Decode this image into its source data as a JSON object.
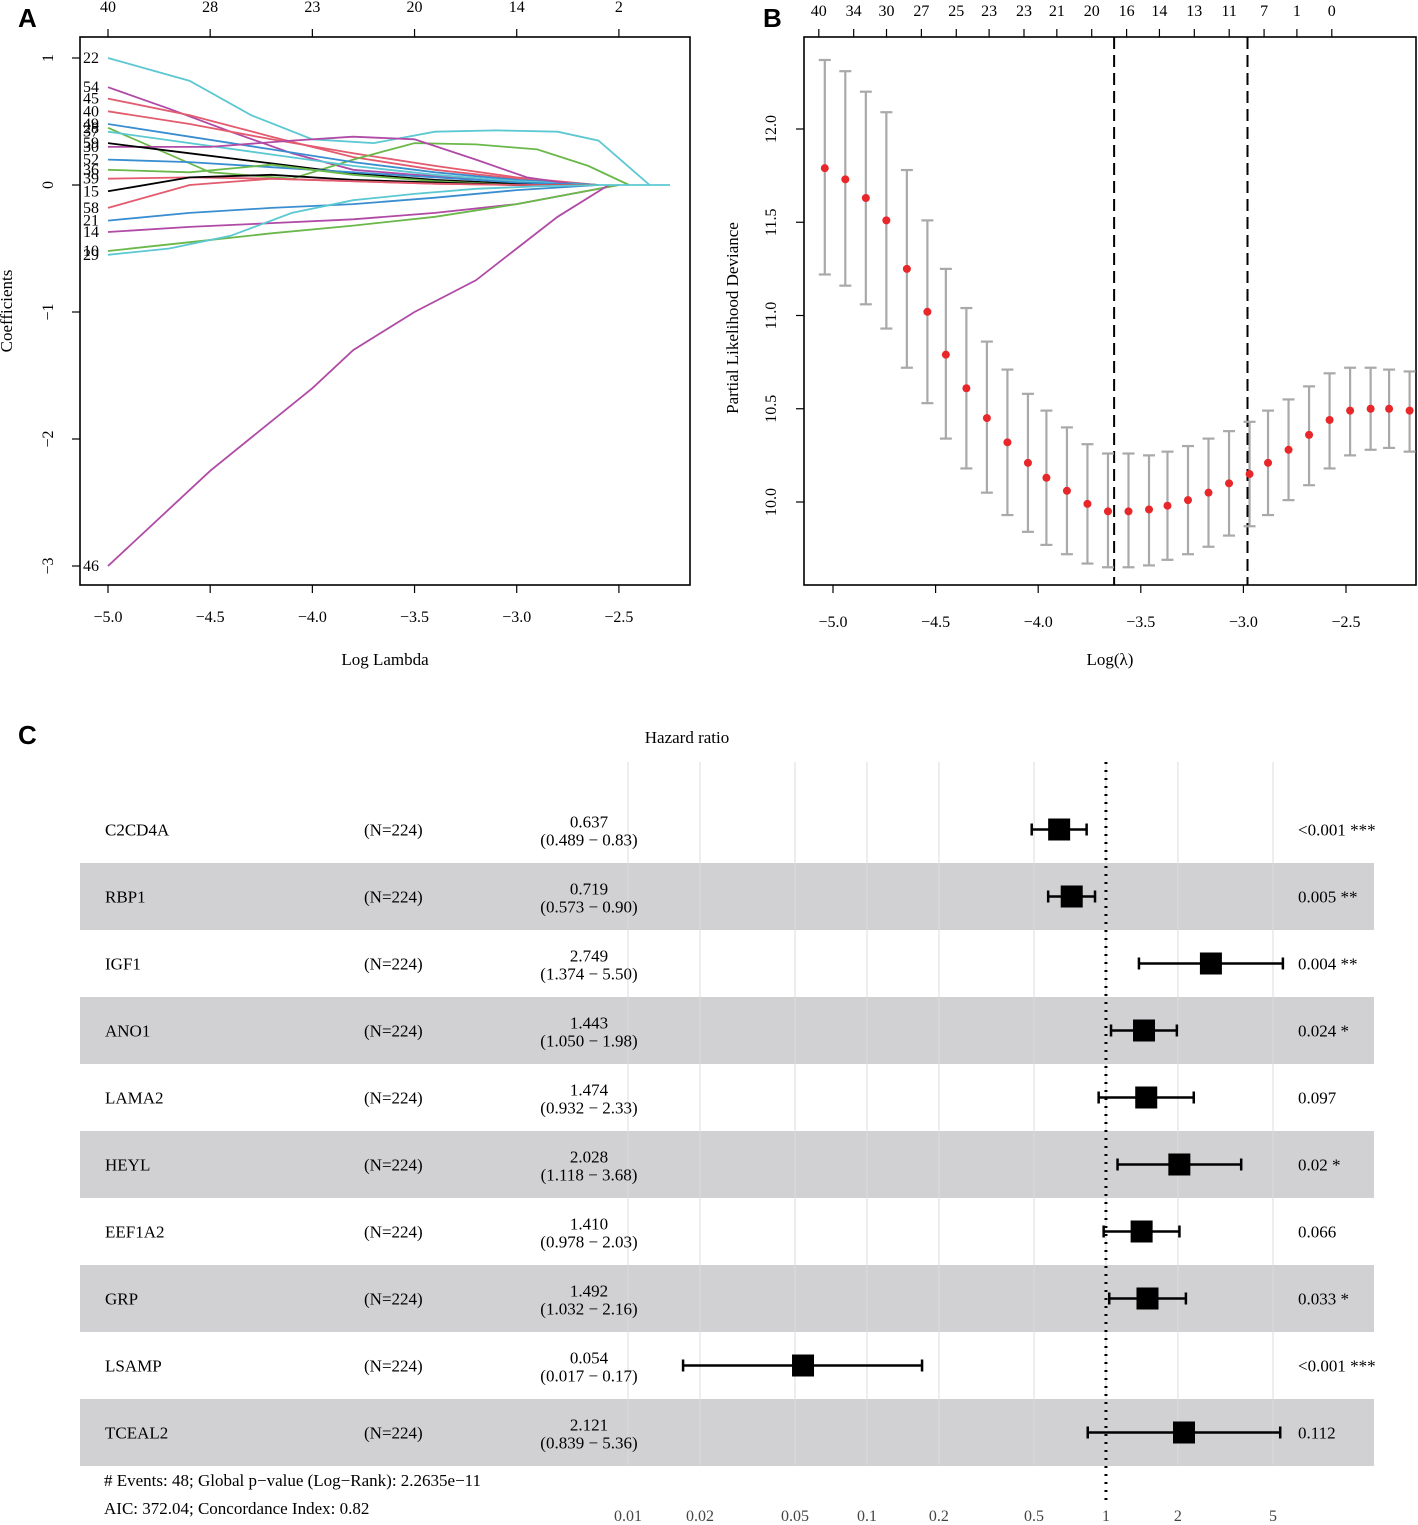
{
  "chart_data": [
    {
      "panel": "A",
      "type": "line",
      "title": "",
      "xlabel": "Log Lambda",
      "ylabel": "Coefficients",
      "xlim": [
        -5.0,
        -2.25
      ],
      "ylim": [
        -3.0,
        1.0
      ],
      "x_ticks": [
        "−5.0",
        "−4.5",
        "−4.0",
        "−3.5",
        "−3.0",
        "−2.5"
      ],
      "y_ticks": [
        "1",
        "0",
        "−1",
        "−2",
        "−3"
      ],
      "top_ticks": [
        "40",
        "28",
        "23",
        "20",
        "14",
        "2"
      ],
      "top_tick_x": [
        -5.0,
        -4.5,
        -4.0,
        -3.5,
        -3.0,
        -2.5
      ],
      "left_labels": [
        "22",
        "54",
        "45",
        "40",
        "28",
        "49",
        "37",
        "30",
        "59",
        "52",
        "36",
        "39",
        "15",
        "58",
        "21",
        "14",
        "10",
        "29",
        "46"
      ],
      "series": [
        {
          "name": "22",
          "color": "#5bc8d2",
          "x": [
            -5.0,
            -4.6,
            -4.3,
            -4.0,
            -3.7,
            -3.4,
            -3.1,
            -2.8,
            -2.6,
            -2.35
          ],
          "values": [
            1.0,
            0.82,
            0.55,
            0.36,
            0.33,
            0.42,
            0.43,
            0.42,
            0.35,
            0.0
          ]
        },
        {
          "name": "54",
          "color": "#b04aa6",
          "x": [
            -5.0,
            -4.7,
            -4.4,
            -4.1,
            -3.8,
            -3.5,
            -3.2,
            -2.9,
            -2.6
          ],
          "values": [
            0.77,
            0.6,
            0.42,
            0.25,
            0.12,
            0.08,
            0.05,
            0.02,
            0.0
          ]
        },
        {
          "name": "45",
          "color": "#e35b6e",
          "x": [
            -5.0,
            -4.6,
            -4.2,
            -3.8,
            -3.4,
            -3.0,
            -2.6
          ],
          "values": [
            0.68,
            0.55,
            0.38,
            0.22,
            0.12,
            0.05,
            0.0
          ]
        },
        {
          "name": "40",
          "color": "#e35b6e",
          "x": [
            -5.0,
            -4.6,
            -4.2,
            -3.8,
            -3.4,
            -3.0,
            -2.6
          ],
          "values": [
            0.58,
            0.48,
            0.36,
            0.25,
            0.15,
            0.06,
            0.0
          ]
        },
        {
          "name": "28",
          "color": "#6ab84a",
          "x": [
            -5.0,
            -4.5,
            -4.1,
            -3.8,
            -3.5,
            -3.2,
            -2.9,
            -2.65,
            -2.45
          ],
          "values": [
            0.45,
            0.1,
            0.05,
            0.2,
            0.33,
            0.32,
            0.28,
            0.15,
            0.0
          ]
        },
        {
          "name": "49",
          "color": "#3a8ed0",
          "x": [
            -5.0,
            -4.6,
            -4.2,
            -3.8,
            -3.4,
            -3.0,
            -2.6
          ],
          "values": [
            0.48,
            0.38,
            0.28,
            0.18,
            0.1,
            0.04,
            0.0
          ]
        },
        {
          "name": "37",
          "color": "#5bc8d2",
          "x": [
            -5.0,
            -4.6,
            -4.2,
            -3.8,
            -3.4,
            -3.0,
            -2.6
          ],
          "values": [
            0.42,
            0.33,
            0.24,
            0.15,
            0.08,
            0.03,
            0.0
          ]
        },
        {
          "name": "30",
          "color": "#b04aa6",
          "x": [
            -5.0,
            -4.5,
            -4.1,
            -3.8,
            -3.5,
            -3.2,
            -2.95,
            -2.7
          ],
          "values": [
            0.3,
            0.3,
            0.35,
            0.38,
            0.36,
            0.2,
            0.06,
            0.0
          ]
        },
        {
          "name": "59",
          "color": "#000000",
          "x": [
            -5.0,
            -4.6,
            -4.2,
            -3.8,
            -3.4,
            -3.0,
            -2.6
          ],
          "values": [
            0.33,
            0.25,
            0.17,
            0.09,
            0.04,
            0.01,
            0.0
          ]
        },
        {
          "name": "52",
          "color": "#3a8ed0",
          "x": [
            -5.0,
            -4.6,
            -4.2,
            -3.8,
            -3.4,
            -3.0,
            -2.6
          ],
          "values": [
            0.2,
            0.18,
            0.14,
            0.1,
            0.06,
            0.02,
            0.0
          ]
        },
        {
          "name": "36",
          "color": "#6ab84a",
          "x": [
            -5.0,
            -4.6,
            -4.2,
            -3.8,
            -3.4,
            -3.0,
            -2.6
          ],
          "values": [
            0.12,
            0.1,
            0.16,
            0.08,
            0.03,
            0.0,
            0.0
          ]
        },
        {
          "name": "39",
          "color": "#e35b6e",
          "x": [
            -5.0,
            -4.6,
            -4.2,
            -3.8,
            -3.4,
            -3.0,
            -2.6
          ],
          "values": [
            0.05,
            0.06,
            0.05,
            0.03,
            0.01,
            0.0,
            0.0
          ]
        },
        {
          "name": "15",
          "color": "#000000",
          "x": [
            -5.0,
            -4.6,
            -4.2,
            -3.8,
            -3.4,
            -3.0,
            -2.6
          ],
          "values": [
            -0.05,
            0.06,
            0.08,
            0.04,
            0.02,
            0.0,
            0.0
          ]
        },
        {
          "name": "58",
          "color": "#e35b6e",
          "x": [
            -5.0,
            -4.6,
            -4.2,
            -3.8,
            -3.4,
            -3.0,
            -2.6
          ],
          "values": [
            -0.18,
            0.0,
            0.05,
            0.03,
            0.01,
            0.0,
            0.0
          ]
        },
        {
          "name": "21",
          "color": "#3a8ed0",
          "x": [
            -5.0,
            -4.6,
            -4.2,
            -3.8,
            -3.4,
            -3.0,
            -2.6
          ],
          "values": [
            -0.28,
            -0.22,
            -0.18,
            -0.15,
            -0.1,
            -0.04,
            0.0
          ]
        },
        {
          "name": "14",
          "color": "#b04aa6",
          "x": [
            -5.0,
            -4.6,
            -4.2,
            -3.8,
            -3.4,
            -3.0,
            -2.7,
            -2.5
          ],
          "values": [
            -0.37,
            -0.33,
            -0.3,
            -0.27,
            -0.22,
            -0.15,
            -0.06,
            0.0
          ]
        },
        {
          "name": "10",
          "color": "#6ab84a",
          "x": [
            -5.0,
            -4.6,
            -4.2,
            -3.8,
            -3.4,
            -3.0,
            -2.7,
            -2.5
          ],
          "values": [
            -0.52,
            -0.45,
            -0.38,
            -0.32,
            -0.25,
            -0.15,
            -0.06,
            0.0
          ]
        },
        {
          "name": "29",
          "color": "#5bc8d2",
          "x": [
            -5.0,
            -4.7,
            -4.4,
            -4.1,
            -3.8,
            -3.5,
            -3.2,
            -2.9,
            -2.6
          ],
          "values": [
            -0.55,
            -0.5,
            -0.4,
            -0.22,
            -0.12,
            -0.07,
            -0.03,
            -0.01,
            0.0
          ]
        },
        {
          "name": "46",
          "color": "#b04aa6",
          "x": [
            -5.0,
            -4.5,
            -4.0,
            -3.8,
            -3.5,
            -3.2,
            -3.0,
            -2.8,
            -2.55
          ],
          "values": [
            -3.0,
            -2.25,
            -1.6,
            -1.3,
            -1.0,
            -0.75,
            -0.5,
            -0.25,
            0.0
          ]
        }
      ]
    },
    {
      "panel": "B",
      "type": "scatter",
      "title": "",
      "xlabel": "Log(λ)",
      "ylabel": "Partial Likelihood Deviance",
      "xlim": [
        -5.1,
        -2.25
      ],
      "ylim": [
        9.65,
        12.4
      ],
      "x_ticks": [
        "−5.0",
        "−4.5",
        "−4.0",
        "−3.5",
        "−3.0",
        "−2.5"
      ],
      "y_ticks": [
        "10.0",
        "10.5",
        "11.0",
        "11.5",
        "12.0"
      ],
      "top_ticks": [
        "40",
        "34",
        "30",
        "27",
        "25",
        "23",
        "23",
        "21",
        "20",
        "16",
        "14",
        "13",
        "11",
        "7",
        "1",
        "0"
      ],
      "top_tick_x": [
        -5.04,
        -4.87,
        -4.71,
        -4.54,
        -4.37,
        -4.21,
        -4.04,
        -3.88,
        -3.71,
        -3.54,
        -3.38,
        -3.21,
        -3.04,
        -2.87,
        -2.71,
        -2.54
      ],
      "x": [
        -5.04,
        -4.94,
        -4.84,
        -4.74,
        -4.64,
        -4.54,
        -4.45,
        -4.35,
        -4.25,
        -4.15,
        -4.05,
        -3.96,
        -3.86,
        -3.76,
        -3.66,
        -3.56,
        -3.46,
        -3.37,
        -3.27,
        -3.17,
        -3.07,
        -2.97,
        -2.88,
        -2.78,
        -2.68,
        -2.58,
        -2.48,
        -2.38,
        -2.29,
        -2.19
      ],
      "values": [
        11.79,
        11.73,
        11.63,
        11.51,
        11.25,
        11.02,
        10.79,
        10.61,
        10.45,
        10.32,
        10.21,
        10.13,
        10.06,
        9.99,
        9.95,
        9.95,
        9.96,
        9.98,
        10.01,
        10.05,
        10.1,
        10.15,
        10.21,
        10.28,
        10.36,
        10.44,
        10.49,
        10.5,
        10.5,
        10.49
      ],
      "upper": [
        12.37,
        12.31,
        12.2,
        12.09,
        11.78,
        11.51,
        11.25,
        11.04,
        10.86,
        10.71,
        10.58,
        10.49,
        10.4,
        10.31,
        10.26,
        10.26,
        10.25,
        10.27,
        10.3,
        10.34,
        10.38,
        10.43,
        10.49,
        10.55,
        10.62,
        10.69,
        10.72,
        10.72,
        10.71,
        10.7
      ],
      "lower": [
        11.22,
        11.16,
        11.06,
        10.93,
        10.72,
        10.53,
        10.34,
        10.18,
        10.05,
        9.93,
        9.84,
        9.77,
        9.72,
        9.67,
        9.65,
        9.65,
        9.66,
        9.69,
        9.72,
        9.76,
        9.82,
        9.87,
        9.93,
        10.01,
        10.09,
        10.18,
        10.25,
        10.28,
        10.29,
        10.27
      ],
      "vlines": [
        -3.63,
        -2.98
      ],
      "point_color": "#e8272a",
      "errorbar_color": "#a9a9a9"
    },
    {
      "panel": "C",
      "type": "forest",
      "title": "Hazard ratio",
      "x_scale": "log",
      "xlim": [
        0.01,
        10
      ],
      "x_ticks": [
        0.01,
        0.02,
        0.05,
        0.1,
        0.2,
        0.5,
        1,
        2,
        5
      ],
      "x_tick_labels": [
        "0.01",
        "0.02",
        "0.05",
        "0.1",
        "0.2",
        "0.5",
        "1",
        "2",
        "5"
      ],
      "reference": 1,
      "rows": [
        {
          "gene": "C2CD4A",
          "n": "(N=224)",
          "hr_text": "0.637",
          "ci_text": "(0.489 − 0.83)",
          "hr": 0.637,
          "lo": 0.489,
          "hi": 0.83,
          "p": "<0.001 ***"
        },
        {
          "gene": "RBP1",
          "n": "(N=224)",
          "hr_text": "0.719",
          "ci_text": "(0.573 − 0.90)",
          "hr": 0.719,
          "lo": 0.573,
          "hi": 0.9,
          "p": "0.005 **"
        },
        {
          "gene": "IGF1",
          "n": "(N=224)",
          "hr_text": "2.749",
          "ci_text": "(1.374 − 5.50)",
          "hr": 2.749,
          "lo": 1.374,
          "hi": 5.5,
          "p": "0.004 **"
        },
        {
          "gene": "ANO1",
          "n": "(N=224)",
          "hr_text": "1.443",
          "ci_text": "(1.050 − 1.98)",
          "hr": 1.443,
          "lo": 1.05,
          "hi": 1.98,
          "p": "0.024 *"
        },
        {
          "gene": "LAMA2",
          "n": "(N=224)",
          "hr_text": "1.474",
          "ci_text": "(0.932 − 2.33)",
          "hr": 1.474,
          "lo": 0.932,
          "hi": 2.33,
          "p": "0.097"
        },
        {
          "gene": "HEYL",
          "n": "(N=224)",
          "hr_text": "2.028",
          "ci_text": "(1.118 − 3.68)",
          "hr": 2.028,
          "lo": 1.118,
          "hi": 3.68,
          "p": "0.02 *"
        },
        {
          "gene": "EEF1A2",
          "n": "(N=224)",
          "hr_text": "1.410",
          "ci_text": "(0.978 − 2.03)",
          "hr": 1.41,
          "lo": 0.978,
          "hi": 2.03,
          "p": "0.066"
        },
        {
          "gene": "GRP",
          "n": "(N=224)",
          "hr_text": "1.492",
          "ci_text": "(1.032 − 2.16)",
          "hr": 1.492,
          "lo": 1.032,
          "hi": 2.16,
          "p": "0.033 *"
        },
        {
          "gene": "LSAMP",
          "n": "(N=224)",
          "hr_text": "0.054",
          "ci_text": "(0.017 − 0.17)",
          "hr": 0.054,
          "lo": 0.017,
          "hi": 0.17,
          "p": "<0.001 ***"
        },
        {
          "gene": "TCEAL2",
          "n": "(N=224)",
          "hr_text": "2.121",
          "ci_text": "(0.839 − 5.36)",
          "hr": 2.121,
          "lo": 0.839,
          "hi": 5.36,
          "p": "0.112"
        }
      ],
      "footer": [
        "# Events: 48; Global p−value (Log−Rank): 2.2635e−11",
        "AIC: 372.04; Concordance Index: 0.82"
      ]
    }
  ],
  "panel_labels": [
    "A",
    "B",
    "C"
  ],
  "colors": {
    "stripe": "#d1d1d3",
    "axis": "#000000",
    "grid": "#d9d9d9"
  }
}
